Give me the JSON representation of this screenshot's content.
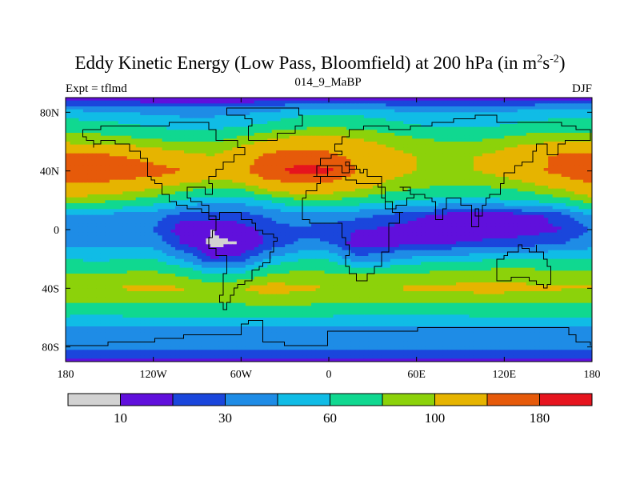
{
  "chart_data": {
    "type": "heatmap",
    "title_main": "Eddy Kinetic Energy (Low Pass, Bloomfield) at 200 hPa (in m",
    "title_sup1": "2",
    "title_mid": "s",
    "title_sup2": "-2",
    "title_end": ")",
    "left_string": "Expt = tflmd",
    "center_string": "014_9_MaBP",
    "right_string": "DJF",
    "x_ticks": [
      {
        "value": -180,
        "label": "180"
      },
      {
        "value": -120,
        "label": "120W"
      },
      {
        "value": -60,
        "label": "60W"
      },
      {
        "value": 0,
        "label": "0"
      },
      {
        "value": 60,
        "label": "60E"
      },
      {
        "value": 120,
        "label": "120E"
      },
      {
        "value": 180,
        "label": "180"
      }
    ],
    "y_ticks": [
      {
        "value": 80,
        "label": "80N"
      },
      {
        "value": 40,
        "label": "40N"
      },
      {
        "value": 0,
        "label": "0"
      },
      {
        "value": -40,
        "label": "40S"
      },
      {
        "value": -80,
        "label": "80S"
      }
    ],
    "xlim": [
      -180,
      180
    ],
    "ylim": [
      -90,
      90
    ],
    "contour_levels": [
      10,
      20,
      30,
      45,
      60,
      80,
      100,
      140,
      180
    ],
    "level_labels": [
      {
        "index": 1,
        "label": "10"
      },
      {
        "index": 3,
        "label": "30"
      },
      {
        "index": 5,
        "label": "60"
      },
      {
        "index": 7,
        "label": "100"
      },
      {
        "index": 9,
        "label": "180"
      }
    ],
    "colors": [
      "#d2d2d2",
      "#6010dc",
      "#1a46dc",
      "#1e8ce6",
      "#10bce6",
      "#10d890",
      "#8cd20a",
      "#e6b400",
      "#e65a0a",
      "#e6141e"
    ],
    "field": {
      "dims": "lat rows (90N to 90S, 10 deg) x lon cols (180W to 180E, 20 deg)",
      "lats": [
        90,
        80,
        70,
        60,
        50,
        40,
        30,
        20,
        10,
        0,
        -10,
        -20,
        -30,
        -40,
        -50,
        -60,
        -70,
        -80,
        -90
      ],
      "lons": [
        -180,
        -160,
        -140,
        -120,
        -100,
        -80,
        -60,
        -40,
        -20,
        0,
        20,
        40,
        60,
        80,
        100,
        120,
        140,
        160,
        180
      ],
      "values": [
        [
          10,
          10,
          10,
          10,
          10,
          10,
          10,
          10,
          10,
          10,
          10,
          10,
          10,
          10,
          10,
          10,
          10,
          10,
          10
        ],
        [
          50,
          48,
          45,
          42,
          40,
          40,
          42,
          45,
          55,
          58,
          55,
          50,
          45,
          45,
          45,
          48,
          50,
          50,
          50
        ],
        [
          72,
          70,
          65,
          60,
          55,
          55,
          60,
          68,
          75,
          80,
          75,
          70,
          62,
          58,
          58,
          62,
          68,
          72,
          72
        ],
        [
          95,
          92,
          88,
          85,
          78,
          78,
          90,
          105,
          115,
          115,
          105,
          95,
          85,
          80,
          80,
          88,
          95,
          98,
          95
        ],
        [
          150,
          150,
          140,
          120,
          110,
          100,
          120,
          150,
          165,
          150,
          128,
          112,
          100,
          96,
          100,
          110,
          130,
          150,
          150
        ],
        [
          180,
          178,
          168,
          160,
          140,
          120,
          130,
          175,
          192,
          190,
          138,
          110,
          100,
          90,
          100,
          110,
          130,
          155,
          180
        ],
        [
          135,
          130,
          120,
          108,
          95,
          85,
          90,
          118,
          132,
          125,
          110,
          95,
          85,
          80,
          80,
          85,
          95,
          110,
          135
        ],
        [
          90,
          86,
          80,
          70,
          58,
          50,
          50,
          62,
          78,
          78,
          72,
          65,
          60,
          55,
          55,
          58,
          62,
          72,
          90
        ],
        [
          45,
          42,
          40,
          36,
          25,
          24,
          26,
          32,
          40,
          38,
          34,
          28,
          22,
          16,
          14,
          15,
          18,
          25,
          45
        ],
        [
          30,
          32,
          35,
          30,
          14,
          10,
          15,
          25,
          28,
          24,
          20,
          18,
          16,
          14,
          14,
          14,
          16,
          20,
          30
        ],
        [
          40,
          42,
          42,
          40,
          20,
          8,
          10,
          22,
          32,
          32,
          14,
          16,
          20,
          20,
          22,
          24,
          26,
          30,
          40
        ],
        [
          60,
          56,
          60,
          60,
          42,
          20,
          24,
          46,
          58,
          58,
          35,
          40,
          50,
          52,
          56,
          60,
          62,
          62,
          60
        ],
        [
          82,
          78,
          82,
          84,
          75,
          58,
          62,
          80,
          85,
          82,
          80,
          78,
          82,
          85,
          88,
          90,
          88,
          85,
          82
        ],
        [
          102,
          100,
          102,
          105,
          102,
          95,
          100,
          110,
          105,
          100,
          100,
          100,
          104,
          105,
          108,
          108,
          104,
          102,
          102
        ],
        [
          80,
          78,
          80,
          82,
          82,
          80,
          82,
          86,
          84,
          80,
          78,
          78,
          80,
          80,
          82,
          82,
          80,
          80,
          80
        ],
        [
          58,
          56,
          58,
          60,
          60,
          58,
          58,
          60,
          60,
          58,
          56,
          56,
          56,
          56,
          58,
          58,
          58,
          58,
          58
        ],
        [
          38,
          36,
          36,
          38,
          38,
          36,
          36,
          38,
          38,
          36,
          34,
          34,
          34,
          36,
          36,
          36,
          36,
          38,
          38
        ],
        [
          35,
          34,
          34,
          35,
          35,
          34,
          34,
          35,
          35,
          34,
          34,
          34,
          34,
          35,
          35,
          35,
          34,
          35,
          35
        ],
        [
          16,
          16,
          16,
          16,
          16,
          16,
          16,
          16,
          16,
          16,
          16,
          16,
          16,
          16,
          16,
          16,
          16,
          16,
          16
        ]
      ]
    }
  }
}
